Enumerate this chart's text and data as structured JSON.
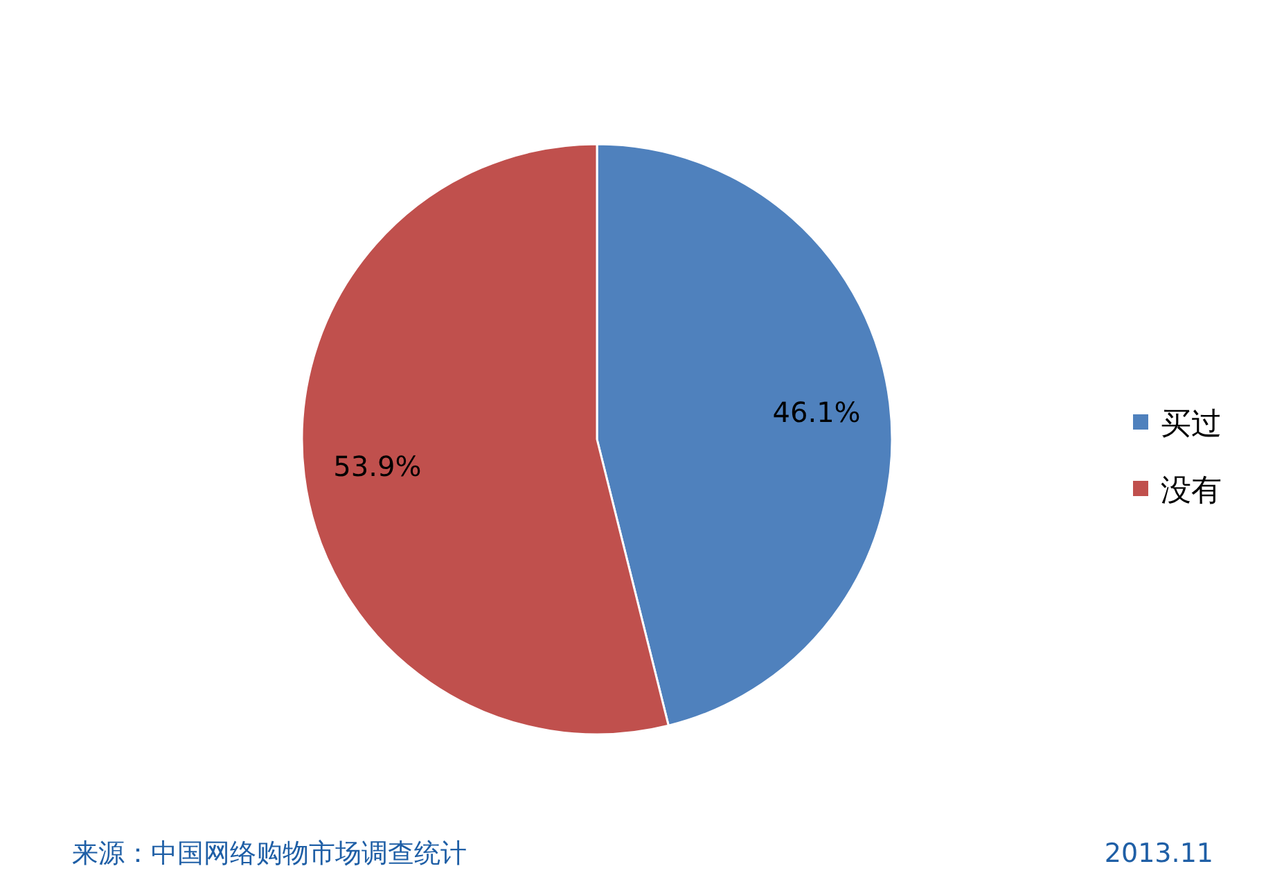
{
  "chart_data": {
    "type": "pie",
    "categories": [
      "买过",
      "没有"
    ],
    "values": [
      46.1,
      53.9
    ],
    "colors": [
      "#4f81bd",
      "#c0504d"
    ],
    "value_labels": [
      "46.1%",
      "53.9%"
    ],
    "legend": "right",
    "annotations": [
      "来源：中国网络购物市场调查统计",
      "2013.11"
    ]
  }
}
